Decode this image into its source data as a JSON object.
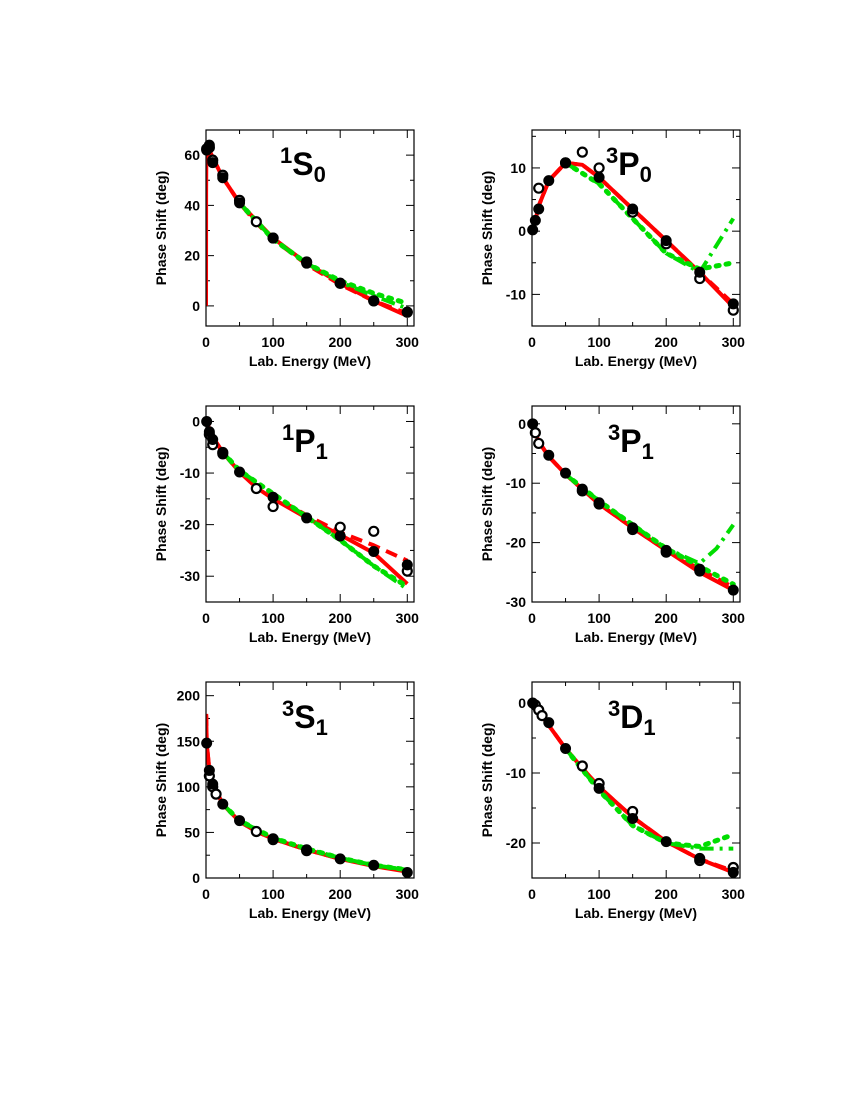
{
  "chart_data": [
    {
      "type": "line",
      "label_pre": "1",
      "label_letter": "S",
      "label_sub": "0",
      "xlabel": "Lab. Energy (MeV)",
      "ylabel": "Phase Shift (deg)",
      "xlim": [
        0,
        310
      ],
      "ylim": [
        -8,
        70
      ],
      "xticks": [
        0,
        100,
        200,
        300
      ],
      "yticks": [
        0,
        20,
        40,
        60
      ],
      "series": [
        {
          "style": "solid",
          "color": "#ff0000",
          "x": [
            0,
            0.15,
            0.5,
            1,
            2,
            5,
            10,
            25,
            50,
            75,
            100,
            150,
            200,
            250,
            300
          ],
          "y": [
            0,
            45,
            58,
            60,
            60,
            62,
            59,
            51,
            41,
            34,
            27,
            17,
            9,
            2,
            -4
          ]
        },
        {
          "style": "dashed",
          "color": "#ff0000",
          "x": [
            0.5,
            1,
            2,
            5,
            10,
            25,
            50,
            75,
            100,
            150,
            200,
            250,
            300
          ],
          "y": [
            58,
            60,
            60,
            62,
            59,
            51,
            41,
            33,
            26.5,
            16.5,
            8.5,
            2,
            -3
          ]
        },
        {
          "style": "dotted",
          "color": "#00dd00",
          "x": [
            50,
            100,
            150,
            200,
            250,
            300
          ],
          "y": [
            41,
            26.5,
            17,
            10,
            5,
            1
          ]
        },
        {
          "style": "dashdot",
          "color": "#00dd00",
          "x": [
            50,
            100,
            150,
            200,
            250,
            300
          ],
          "y": [
            41,
            26.5,
            17,
            9.5,
            4,
            -1
          ]
        }
      ],
      "filled_points": {
        "x": [
          1,
          5,
          10,
          25,
          50,
          100,
          150,
          200,
          250,
          300
        ],
        "y": [
          62,
          64,
          57,
          51,
          41,
          27,
          17,
          9,
          2,
          -2.5
        ]
      },
      "open_points": {
        "x": [
          1,
          5,
          10,
          25,
          50,
          75,
          100,
          150,
          200,
          250,
          300
        ],
        "y": [
          62.5,
          63,
          58,
          52,
          42,
          33.5,
          27,
          17.5,
          9,
          2,
          -2.5
        ]
      }
    },
    {
      "type": "line",
      "label_pre": "3",
      "label_letter": "P",
      "label_sub": "0",
      "xlabel": "Lab. Energy (MeV)",
      "ylabel": "Phase Shift (deg)",
      "xlim": [
        0,
        310
      ],
      "ylim": [
        -15,
        16
      ],
      "xticks": [
        0,
        100,
        200,
        300
      ],
      "yticks": [
        -10,
        0,
        10
      ],
      "series": [
        {
          "style": "solid",
          "color": "#ff0000",
          "x": [
            1,
            5,
            10,
            25,
            50,
            75,
            100,
            150,
            200,
            250,
            300
          ],
          "y": [
            0.2,
            1.7,
            4,
            8,
            10.8,
            10.5,
            8.5,
            3.5,
            -1.5,
            -6.5,
            -12
          ]
        },
        {
          "style": "dashed",
          "color": "#ff0000",
          "x": [
            1,
            5,
            10,
            25,
            50,
            75,
            100,
            150,
            200,
            250,
            300
          ],
          "y": [
            0.2,
            1.7,
            4,
            8,
            10.8,
            10.5,
            8.5,
            3.5,
            -1.5,
            -6.5,
            -11.5
          ]
        },
        {
          "style": "dotted",
          "color": "#00dd00",
          "x": [
            50,
            100,
            150,
            200,
            250,
            300
          ],
          "y": [
            10.8,
            7.5,
            2,
            -3.5,
            -6,
            -5
          ]
        },
        {
          "style": "dashdot",
          "color": "#00dd00",
          "x": [
            50,
            100,
            150,
            200,
            250,
            300
          ],
          "y": [
            10.8,
            7.5,
            2,
            -3.5,
            -6.5,
            2
          ]
        }
      ],
      "filled_points": {
        "x": [
          1,
          5,
          10,
          25,
          50,
          100,
          150,
          200,
          250,
          300
        ],
        "y": [
          0.2,
          1.7,
          3.5,
          8,
          10.8,
          8.5,
          3.5,
          -1.5,
          -6.5,
          -11.5
        ]
      },
      "open_points": {
        "x": [
          10,
          50,
          75,
          100,
          150,
          200,
          250,
          300
        ],
        "y": [
          6.8,
          10.8,
          12.5,
          10,
          3,
          -2,
          -7.5,
          -12.5
        ]
      }
    },
    {
      "type": "line",
      "label_pre": "1",
      "label_letter": "P",
      "label_sub": "1",
      "xlabel": "Lab. Energy (MeV)",
      "ylabel": "Phase Shift (deg)",
      "xlim": [
        0,
        310
      ],
      "ylim": [
        -35,
        3
      ],
      "xticks": [
        0,
        100,
        200,
        300
      ],
      "yticks": [
        -30,
        -20,
        -10,
        0
      ],
      "series": [
        {
          "style": "solid",
          "color": "#ff0000",
          "x": [
            1,
            5,
            10,
            25,
            50,
            75,
            100,
            150,
            200,
            250,
            300
          ],
          "y": [
            0,
            -1.5,
            -3,
            -6,
            -9.8,
            -12.8,
            -15,
            -18.7,
            -22,
            -25.5,
            -31.5
          ]
        },
        {
          "style": "dashed",
          "color": "#ff0000",
          "x": [
            1,
            5,
            10,
            25,
            50,
            75,
            100,
            150,
            200,
            250,
            300
          ],
          "y": [
            0,
            -1.5,
            -3,
            -6,
            -9.8,
            -12.5,
            -14.5,
            -18.2,
            -21.5,
            -24,
            -27
          ]
        },
        {
          "style": "dotted",
          "color": "#00dd00",
          "x": [
            25,
            50,
            100,
            150,
            200,
            250,
            300
          ],
          "y": [
            -6,
            -9.5,
            -14,
            -18.5,
            -23,
            -28,
            -32
          ]
        },
        {
          "style": "dashdot",
          "color": "#00dd00",
          "x": [
            25,
            50,
            100,
            150,
            200,
            250,
            300
          ],
          "y": [
            -6,
            -9.5,
            -14,
            -18.5,
            -23,
            -28,
            -32.5
          ]
        }
      ],
      "filled_points": {
        "x": [
          1,
          5,
          10,
          25,
          50,
          100,
          150,
          200,
          250,
          300
        ],
        "y": [
          0,
          -2,
          -3.5,
          -6.3,
          -9.8,
          -14.7,
          -18.7,
          -22.2,
          -25.2,
          -27.8
        ]
      },
      "open_points": {
        "x": [
          5,
          10,
          25,
          75,
          100,
          200,
          250,
          300
        ],
        "y": [
          -2.5,
          -4.5,
          -6,
          -13,
          -16.5,
          -20.5,
          -21.3,
          -29
        ]
      }
    },
    {
      "type": "line",
      "label_pre": "3",
      "label_letter": "P",
      "label_sub": "1",
      "xlabel": "Lab. Energy (MeV)",
      "ylabel": "Phase Shift (deg)",
      "xlim": [
        0,
        310
      ],
      "ylim": [
        -30,
        3
      ],
      "xticks": [
        0,
        100,
        200,
        300
      ],
      "yticks": [
        -30,
        -20,
        -10,
        0
      ],
      "series": [
        {
          "style": "solid",
          "color": "#ff0000",
          "x": [
            1,
            5,
            10,
            25,
            50,
            75,
            100,
            150,
            200,
            250,
            300
          ],
          "y": [
            0,
            -1.5,
            -3,
            -5.5,
            -8.5,
            -11,
            -13.5,
            -17.5,
            -21.3,
            -25,
            -28
          ]
        },
        {
          "style": "dashed",
          "color": "#ff0000",
          "x": [
            1,
            5,
            10,
            25,
            50,
            75,
            100,
            150,
            200,
            250,
            300
          ],
          "y": [
            0,
            -1.5,
            -3,
            -5.5,
            -8.5,
            -11,
            -13.5,
            -17.5,
            -21.3,
            -24.5,
            -27.5
          ]
        },
        {
          "style": "dotted",
          "color": "#00dd00",
          "x": [
            50,
            100,
            150,
            200,
            250,
            300
          ],
          "y": [
            -8.5,
            -13,
            -17,
            -21,
            -24,
            -27
          ]
        },
        {
          "style": "dashdot",
          "color": "#00dd00",
          "x": [
            50,
            100,
            150,
            200,
            250,
            275,
            300
          ],
          "y": [
            -8.5,
            -13,
            -17,
            -21,
            -23.5,
            -21,
            -17
          ]
        }
      ],
      "filled_points": {
        "x": [
          1,
          25,
          50,
          75,
          100,
          150,
          200,
          250,
          300
        ],
        "y": [
          0,
          -5.3,
          -8.3,
          -11,
          -13.3,
          -17.5,
          -21.3,
          -24.8,
          -28
        ]
      },
      "open_points": {
        "x": [
          5,
          10,
          75,
          100,
          150,
          200,
          250
        ],
        "y": [
          -1.5,
          -3.3,
          -11.3,
          -13.5,
          -17.8,
          -21.6,
          -24.5
        ]
      }
    },
    {
      "type": "line",
      "label_pre": "3",
      "label_letter": "S",
      "label_sub": "1",
      "xlabel": "Lab. Energy (MeV)",
      "ylabel": "Phase Shift (deg)",
      "xlim": [
        0,
        310
      ],
      "ylim": [
        0,
        215
      ],
      "xticks": [
        0,
        100,
        200,
        300
      ],
      "yticks": [
        0,
        50,
        100,
        150,
        200
      ],
      "series": [
        {
          "style": "solid",
          "color": "#ff0000",
          "x": [
            0.3,
            1,
            5,
            10,
            25,
            50,
            75,
            100,
            150,
            200,
            250,
            300
          ],
          "y": [
            178,
            148,
            118,
            103,
            81,
            62,
            51,
            43,
            31,
            21,
            13,
            7
          ]
        },
        {
          "style": "dashed",
          "color": "#ff0000",
          "x": [
            0.3,
            1,
            5,
            10,
            25,
            50,
            75,
            100,
            150,
            200,
            250,
            300
          ],
          "y": [
            180,
            148,
            118,
            103,
            81,
            62,
            51,
            43,
            31,
            21,
            14,
            8
          ]
        },
        {
          "style": "dotted",
          "color": "#00dd00",
          "x": [
            25,
            50,
            100,
            150,
            200,
            250,
            300
          ],
          "y": [
            81,
            63,
            44,
            32,
            22,
            14,
            9
          ]
        },
        {
          "style": "dashdot",
          "color": "#00dd00",
          "x": [
            25,
            50,
            100,
            150,
            200,
            250,
            300
          ],
          "y": [
            81,
            63,
            44,
            32,
            22,
            14,
            9
          ]
        }
      ],
      "filled_points": {
        "x": [
          1,
          5,
          10,
          25,
          50,
          100,
          150,
          200,
          250,
          300
        ],
        "y": [
          148,
          118,
          103,
          81,
          63,
          42,
          31,
          21,
          14,
          6
        ]
      },
      "open_points": {
        "x": [
          5,
          10,
          15,
          75,
          100,
          150
        ],
        "y": [
          112,
          100,
          92,
          51,
          43,
          30
        ]
      }
    },
    {
      "type": "line",
      "label_pre": "3",
      "label_letter": "D",
      "label_sub": "1",
      "xlabel": "Lab. Energy (MeV)",
      "ylabel": "Phase Shift (deg)",
      "xlim": [
        0,
        310
      ],
      "ylim": [
        -25,
        3
      ],
      "xticks": [
        0,
        100,
        200,
        300
      ],
      "yticks": [
        -20,
        -10,
        0
      ],
      "series": [
        {
          "style": "solid",
          "color": "#ff0000",
          "x": [
            1,
            5,
            10,
            25,
            50,
            75,
            100,
            150,
            200,
            250,
            300
          ],
          "y": [
            0,
            -0.5,
            -1.2,
            -3.2,
            -6.5,
            -9.3,
            -12,
            -16.3,
            -19.8,
            -22.3,
            -24.2
          ]
        },
        {
          "style": "dashed",
          "color": "#ff0000",
          "x": [
            1,
            5,
            10,
            25,
            50,
            75,
            100,
            150,
            200,
            250,
            300
          ],
          "y": [
            0,
            -0.5,
            -1.2,
            -3.2,
            -6.5,
            -9.3,
            -12,
            -16.3,
            -19.8,
            -22.3,
            -24
          ]
        },
        {
          "style": "dotted",
          "color": "#00dd00",
          "x": [
            50,
            100,
            150,
            200,
            250,
            300
          ],
          "y": [
            -6.5,
            -12.5,
            -17.5,
            -20,
            -20.5,
            -18.8
          ]
        },
        {
          "style": "dashdot",
          "color": "#00dd00",
          "x": [
            50,
            100,
            150,
            200,
            250,
            300
          ],
          "y": [
            -6.5,
            -12.5,
            -17.5,
            -20,
            -20.8,
            -20.8
          ]
        }
      ],
      "filled_points": {
        "x": [
          1,
          25,
          50,
          100,
          150,
          200,
          250,
          300
        ],
        "y": [
          0,
          -2.8,
          -6.5,
          -12.2,
          -16.5,
          -19.8,
          -22.2,
          -24.2
        ]
      },
      "open_points": {
        "x": [
          5,
          10,
          15,
          75,
          100,
          150,
          250,
          300
        ],
        "y": [
          -0.3,
          -1,
          -1.8,
          -9,
          -11.5,
          -15.5,
          -22.5,
          -23.5
        ]
      }
    }
  ]
}
